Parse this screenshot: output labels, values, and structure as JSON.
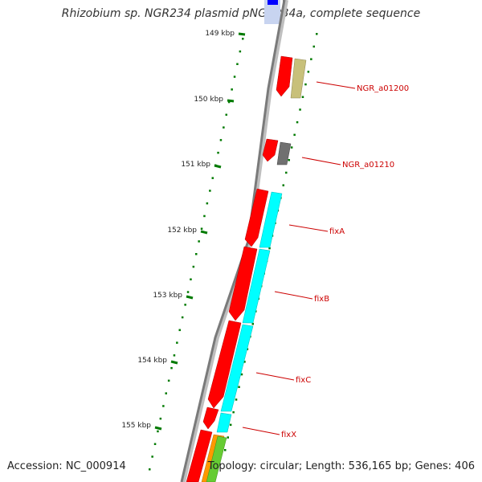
{
  "title": "Rhizobium sp. NGR234 plasmid pNGR234a, complete sequence",
  "accession": "Accession: NC_000914",
  "topology": "Topology: circular; Length: 536,165 bp; Genes: 406",
  "kbp_labels": [
    "149 kbp",
    "150 kbp",
    "151 kbp",
    "152 kbp",
    "153 kbp",
    "154 kbp",
    "155 kbp"
  ],
  "gene_labels": [
    "NGR_a01200",
    "NGR_a01210",
    "fixA",
    "fixB",
    "fixC",
    "fixX"
  ],
  "colors": {
    "backbone": "#7a7a7a",
    "cds": "#ff0000",
    "ngr_a01200": "#c8c07a",
    "ngr_a01210": "#707070",
    "fix": "#00ffff",
    "tick": "#007a00",
    "label": "#cc0000",
    "top_feature": "#0000ff"
  }
}
